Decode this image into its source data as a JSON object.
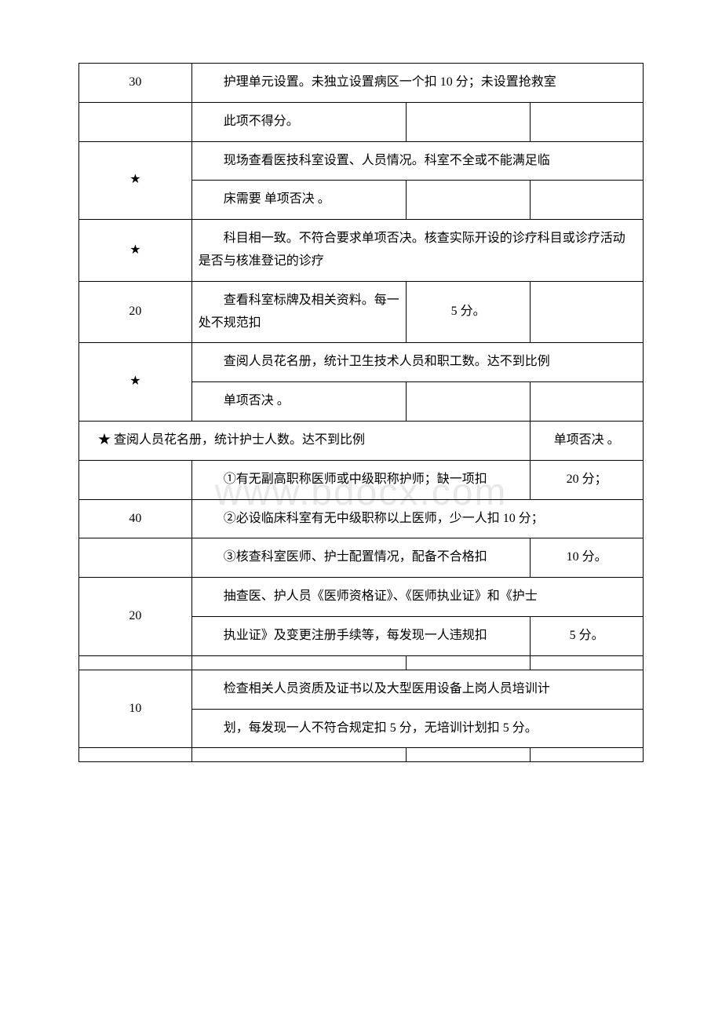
{
  "watermark": "www.bdocx.com",
  "rows": {
    "r1": {
      "score": "30",
      "text": "护理单元设置。未独立设置病区一个扣 10 分；未设置抢救室"
    },
    "r2": {
      "text": "此项不得分。"
    },
    "r3": {
      "star": "★",
      "top": "现场查看医技科室设置、人员情况。科室不全或不能满足临",
      "bottom": "床需要 单项否决 。"
    },
    "r4": {
      "star": "★",
      "text": "科目相一致。不符合要求单项否决。核查实际开设的诊疗科目或诊疗活动是否与核准登记的诊疗"
    },
    "r5": {
      "score": "20",
      "left": "查看科室标牌及相关资料。每一处不规范扣",
      "right": "5 分。"
    },
    "r6": {
      "star": "★",
      "top": "查阅人员花名册，统计卫生技术人员和职工数。达不到比例",
      "bottom": "单项否决 。"
    },
    "r7": {
      "left": "★ 查阅人员花名册，统计护士人数。达不到比例",
      "right": "单项否决 。"
    },
    "r8": {
      "text": "①有无副高职称医师或中级职称护师；缺一项扣",
      "right": "20 分；"
    },
    "r9": {
      "score": "40",
      "text": "②必设临床科室有无中级职称以上医师，少一人扣 10 分；"
    },
    "r10": {
      "text": "③核查科室医师、护士配置情况，配备不合格扣",
      "right": "10 分。"
    },
    "r11": {
      "score": "20",
      "top": "抽查医、护人员《医师资格证》、《医师执业证》和《护士",
      "bottom_left": "执业证》及变更注册手续等，每发现一人违规扣",
      "bottom_right": "5 分。"
    },
    "r12": {
      "score": "10",
      "top": "检查相关人员资质及证书以及大型医用设备上岗人员培训计",
      "bottom": "划，每发现一人不符合规定扣 5 分，无培训计划扣 5 分。"
    }
  }
}
